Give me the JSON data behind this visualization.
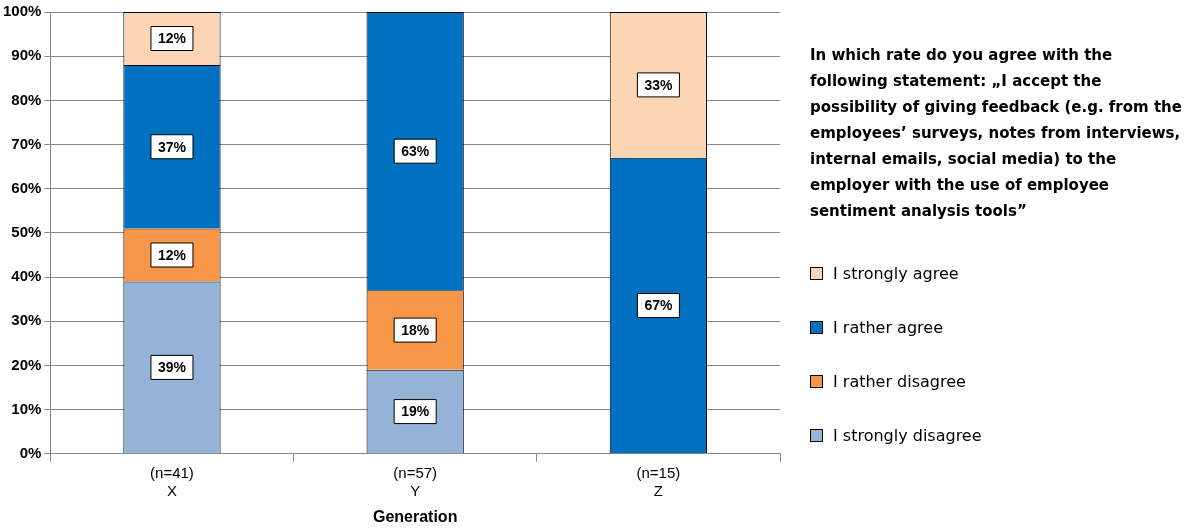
{
  "chart_data": {
    "type": "bar",
    "stacked": true,
    "xlabel": "Generation",
    "legend_title": "In which rate do you agree with the following statement: „I accept the possibility of giving feedback (e.g. from the employees’ surveys, notes from interviews, internal emails, social media) to the employer with the use of employee sentiment analysis tools”",
    "categories": [
      "(n=41)\nX",
      "(n=57)\nY",
      "(n=15)\nZ"
    ],
    "series": [
      {
        "name": "I strongly disagree",
        "color": "#95b3d7",
        "values": [
          39,
          19,
          null
        ],
        "value_labels": [
          "39%",
          "19%",
          null
        ]
      },
      {
        "name": "I rather disagree",
        "color": "#f79646",
        "values": [
          12,
          18,
          null
        ],
        "value_labels": [
          "12%",
          "18%",
          null
        ]
      },
      {
        "name": "I rather agree",
        "color": "#0070c0",
        "values": [
          37,
          63,
          67
        ],
        "value_labels": [
          "37%",
          "63%",
          "67%"
        ]
      },
      {
        "name": "I strongly agree",
        "color": "#fcd5b4",
        "values": [
          12,
          null,
          33
        ],
        "value_labels": [
          "12%",
          null,
          "33%"
        ]
      }
    ],
    "ylim": [
      0,
      100
    ],
    "yticks": [
      {
        "value": 0,
        "label": "0%"
      },
      {
        "value": 10,
        "label": "10%"
      },
      {
        "value": 20,
        "label": "20%"
      },
      {
        "value": 30,
        "label": "30%"
      },
      {
        "value": 40,
        "label": "40%"
      },
      {
        "value": 50,
        "label": "50%"
      },
      {
        "value": 60,
        "label": "60%"
      },
      {
        "value": 70,
        "label": "70%"
      },
      {
        "value": 80,
        "label": "80%"
      },
      {
        "value": 90,
        "label": "90%"
      },
      {
        "value": 100,
        "label": "100%"
      }
    ],
    "grid": "y",
    "legend": "right"
  }
}
